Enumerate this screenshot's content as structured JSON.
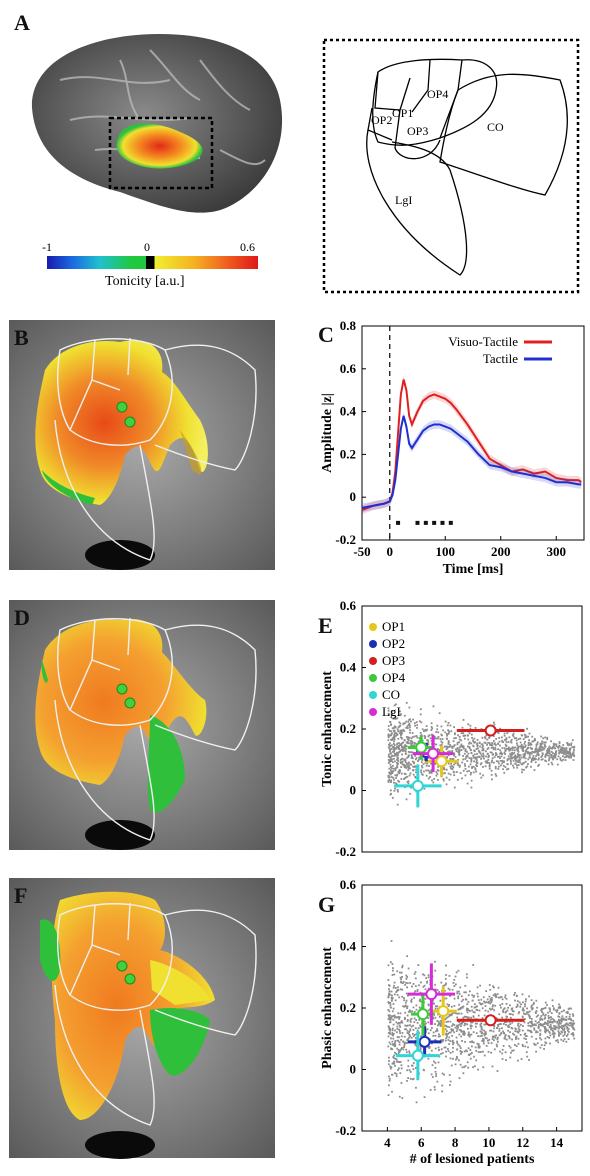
{
  "panels": {
    "A": {
      "label": "A",
      "colorbar": {
        "min": "-1",
        "mid": "0",
        "max": "0.6",
        "title": "Tonicity [a.u.]"
      },
      "regions": [
        "OP1",
        "OP4",
        "OP2",
        "OP3",
        "CO",
        "LgI"
      ]
    },
    "B": {
      "label": "B"
    },
    "C": {
      "label": "C"
    },
    "D": {
      "label": "D"
    },
    "E": {
      "label": "E"
    },
    "F": {
      "label": "F"
    },
    "G": {
      "label": "G"
    }
  },
  "legend_E": [
    {
      "name": "OP1",
      "color": "#e6c619"
    },
    {
      "name": "OP2",
      "color": "#1a2fb5"
    },
    {
      "name": "OP3",
      "color": "#d41f1f"
    },
    {
      "name": "OP4",
      "color": "#3cc93c"
    },
    {
      "name": "CO",
      "color": "#2fd6d6"
    },
    {
      "name": "LgI",
      "color": "#d82bd8"
    }
  ],
  "chart_data": [
    {
      "type": "line",
      "panel": "C",
      "xlabel": "Time [ms]",
      "ylabel": "Amplitude |z|",
      "xlim": [
        -50,
        350
      ],
      "ylim": [
        -0.2,
        0.8
      ],
      "xticks": [
        "-50",
        "0",
        "100",
        "200",
        "300"
      ],
      "yticks": [
        "0.8",
        "0.6",
        "0.4",
        "0.2",
        "0",
        "-0.2"
      ],
      "series": [
        {
          "name": "Visuo-Tactile",
          "color": "#e02020",
          "x": [
            -50,
            -30,
            -10,
            0,
            5,
            10,
            15,
            20,
            25,
            30,
            35,
            40,
            50,
            60,
            70,
            80,
            90,
            100,
            110,
            120,
            140,
            160,
            180,
            200,
            220,
            240,
            260,
            280,
            300,
            320,
            340,
            345
          ],
          "y": [
            -0.06,
            -0.04,
            -0.03,
            -0.02,
            0.02,
            0.12,
            0.3,
            0.48,
            0.55,
            0.5,
            0.38,
            0.34,
            0.4,
            0.45,
            0.47,
            0.48,
            0.47,
            0.46,
            0.44,
            0.41,
            0.34,
            0.26,
            0.18,
            0.15,
            0.12,
            0.13,
            0.11,
            0.12,
            0.09,
            0.08,
            0.08,
            0.07
          ]
        },
        {
          "name": "Tactile",
          "color": "#2030d0",
          "x": [
            -50,
            -30,
            -10,
            0,
            5,
            10,
            15,
            20,
            25,
            30,
            35,
            40,
            50,
            60,
            70,
            80,
            90,
            100,
            110,
            120,
            140,
            160,
            180,
            200,
            220,
            240,
            260,
            280,
            300,
            320,
            340,
            345
          ],
          "y": [
            -0.05,
            -0.04,
            -0.03,
            -0.02,
            0.01,
            0.08,
            0.2,
            0.32,
            0.38,
            0.33,
            0.25,
            0.23,
            0.27,
            0.31,
            0.33,
            0.34,
            0.34,
            0.33,
            0.32,
            0.3,
            0.26,
            0.2,
            0.15,
            0.14,
            0.12,
            0.11,
            0.1,
            0.09,
            0.07,
            0.07,
            0.06,
            0.06
          ]
        }
      ],
      "significance_markers_ms": [
        15,
        50,
        65,
        80,
        95,
        110
      ]
    },
    {
      "type": "scatter",
      "panel": "E",
      "xlabel": "",
      "ylabel": "Tonic enhancement",
      "ylim": [
        -0.2,
        0.6
      ],
      "yticks": [
        "0.6",
        "0.4",
        "0.2",
        "0",
        "-0.2"
      ],
      "xlim": [
        2.5,
        15.5
      ],
      "points": [
        {
          "name": "OP1",
          "color": "#e6c619",
          "x": 7.2,
          "y": 0.095,
          "xerr": 1.0,
          "yerr": 0.05
        },
        {
          "name": "OP2",
          "color": "#1a2fb5",
          "x": 6.3,
          "y": 0.125,
          "xerr": 0.6,
          "yerr": 0.03
        },
        {
          "name": "OP3",
          "color": "#d41f1f",
          "x": 10.1,
          "y": 0.195,
          "xerr": 2.0,
          "yerr": 0.01
        },
        {
          "name": "OP4",
          "color": "#3cc93c",
          "x": 6.0,
          "y": 0.14,
          "xerr": 0.8,
          "yerr": 0.04
        },
        {
          "name": "CO",
          "color": "#2fd6d6",
          "x": 5.8,
          "y": 0.015,
          "xerr": 1.4,
          "yerr": 0.07
        },
        {
          "name": "LgI",
          "color": "#d82bd8",
          "x": 6.7,
          "y": 0.12,
          "xerr": 1.2,
          "yerr": 0.06
        }
      ]
    },
    {
      "type": "scatter",
      "panel": "G",
      "xlabel": "# of lesioned patients",
      "ylabel": "Phasic enhancement",
      "ylim": [
        -0.2,
        0.6
      ],
      "yticks": [
        "0.6",
        "0.4",
        "0.2",
        "0",
        "-0.2"
      ],
      "xlim": [
        2.5,
        15.5
      ],
      "xticks": [
        "4",
        "6",
        "8",
        "10",
        "12",
        "14"
      ],
      "points": [
        {
          "name": "OP1",
          "color": "#e6c619",
          "x": 7.3,
          "y": 0.19,
          "xerr": 0.8,
          "yerr": 0.08
        },
        {
          "name": "OP2",
          "color": "#1a2fb5",
          "x": 6.2,
          "y": 0.09,
          "xerr": 1.0,
          "yerr": 0.05
        },
        {
          "name": "OP3",
          "color": "#d41f1f",
          "x": 10.1,
          "y": 0.16,
          "xerr": 2.0,
          "yerr": 0.01
        },
        {
          "name": "OP4",
          "color": "#3cc93c",
          "x": 6.1,
          "y": 0.18,
          "xerr": 0.7,
          "yerr": 0.07
        },
        {
          "name": "CO",
          "color": "#2fd6d6",
          "x": 5.8,
          "y": 0.045,
          "xerr": 1.3,
          "yerr": 0.08
        },
        {
          "name": "LgI",
          "color": "#d82bd8",
          "x": 6.6,
          "y": 0.245,
          "xerr": 1.4,
          "yerr": 0.1
        }
      ]
    }
  ]
}
